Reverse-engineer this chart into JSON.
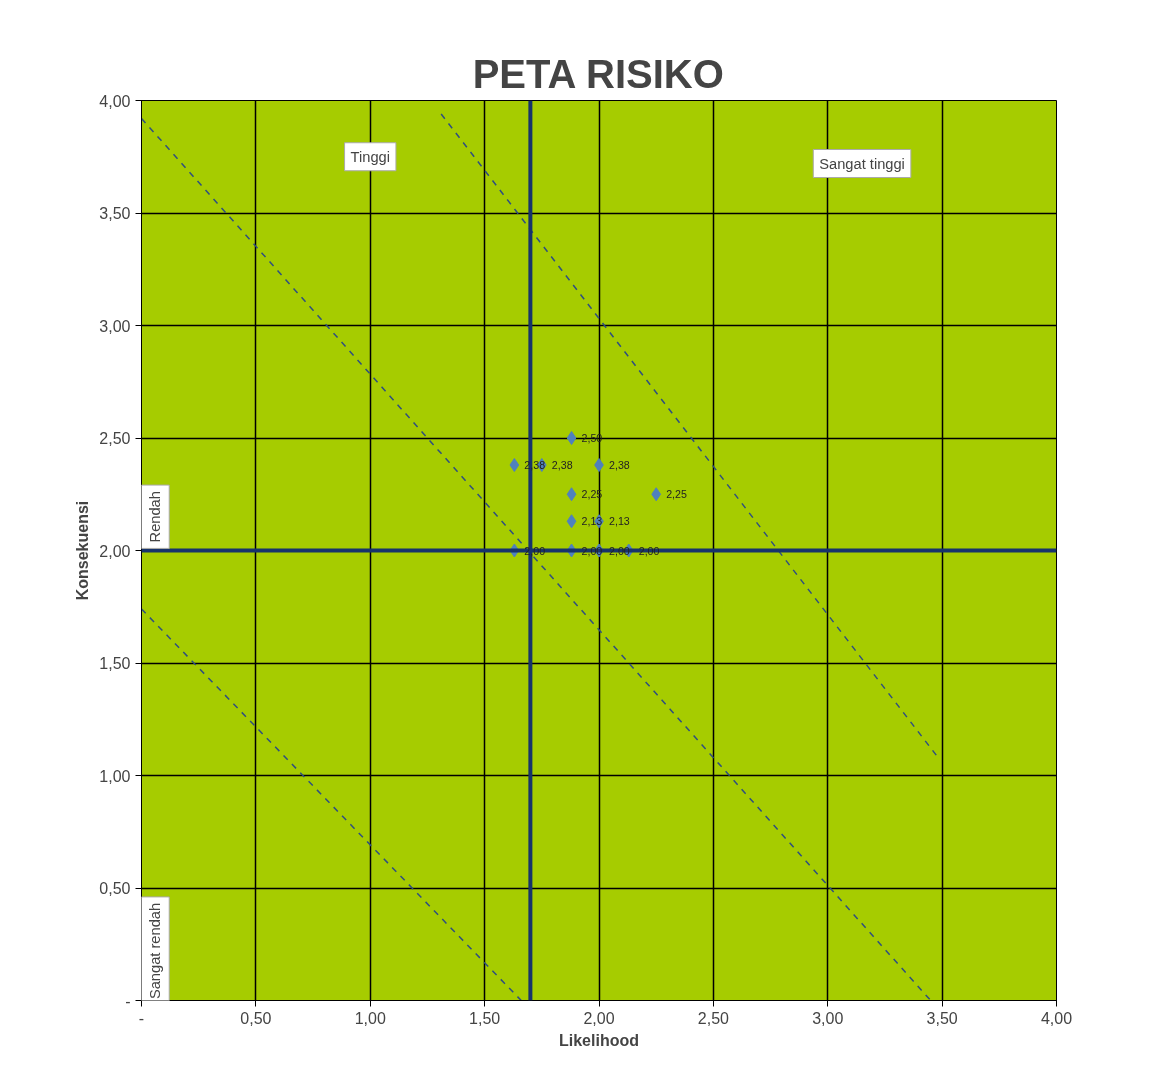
{
  "chart_data": {
    "type": "scatter",
    "title": "PETA RISIKO",
    "xlabel": "Likelihood",
    "ylabel": "Konsekuensi",
    "xlim": [
      0,
      4
    ],
    "ylim": [
      0,
      4
    ],
    "xticks": [
      {
        "value": 0,
        "label": "-"
      },
      {
        "value": 0.5,
        "label": "0,50"
      },
      {
        "value": 1,
        "label": "1,00"
      },
      {
        "value": 1.5,
        "label": "1,50"
      },
      {
        "value": 2,
        "label": "2,00"
      },
      {
        "value": 2.5,
        "label": "2,50"
      },
      {
        "value": 3,
        "label": "3,00"
      },
      {
        "value": 3.5,
        "label": "3,50"
      },
      {
        "value": 4,
        "label": "4,00"
      }
    ],
    "yticks": [
      {
        "value": 0,
        "label": "-"
      },
      {
        "value": 0.5,
        "label": "0,50"
      },
      {
        "value": 1,
        "label": "1,00"
      },
      {
        "value": 1.5,
        "label": "1,50"
      },
      {
        "value": 2,
        "label": "2,00"
      },
      {
        "value": 2.5,
        "label": "2,50"
      },
      {
        "value": 3,
        "label": "3,00"
      },
      {
        "value": 3.5,
        "label": "3,50"
      },
      {
        "value": 4,
        "label": "4,00"
      }
    ],
    "grid": true,
    "series": [
      {
        "marker": "diamond",
        "color": "#4f81bd",
        "x": [
          1.88,
          1.63,
          1.75,
          2.0,
          1.88,
          2.25,
          1.88,
          2.0,
          1.63,
          1.88,
          2.0,
          2.13
        ],
        "values": [
          2.5,
          2.38,
          2.38,
          2.38,
          2.25,
          2.25,
          2.13,
          2.13,
          2.0,
          2.0,
          2.0,
          2.0
        ],
        "value_labels": [
          "2,50",
          "2,38",
          "2,38",
          "2,38",
          "2,25",
          "2,25",
          "2,13",
          "2,13",
          "2,00",
          "2,00",
          "2,00",
          "2,00"
        ]
      },
      {
        "type": "line",
        "line_style": "dashed",
        "color": "#2f4f7f",
        "x": [
          1.31,
          3.49
        ],
        "values": [
          3.94,
          1.07
        ]
      },
      {
        "type": "line",
        "line_style": "dashed",
        "color": "#2f4f7f",
        "x": [
          0,
          3.45
        ],
        "values": [
          3.92,
          0
        ]
      },
      {
        "type": "line",
        "line_style": "dashed",
        "color": "#2f4f7f",
        "x": [
          0,
          1.66
        ],
        "values": [
          1.74,
          0
        ]
      }
    ],
    "ref_lines": [
      {
        "axis": "x",
        "value": 1.7,
        "color": "#17336b"
      },
      {
        "axis": "y",
        "value": 2.0,
        "color": "#17336b"
      }
    ],
    "annotations": [
      "Tinggi",
      "Sangat tinggi",
      "Rendah",
      "Sangat rendah"
    ]
  }
}
